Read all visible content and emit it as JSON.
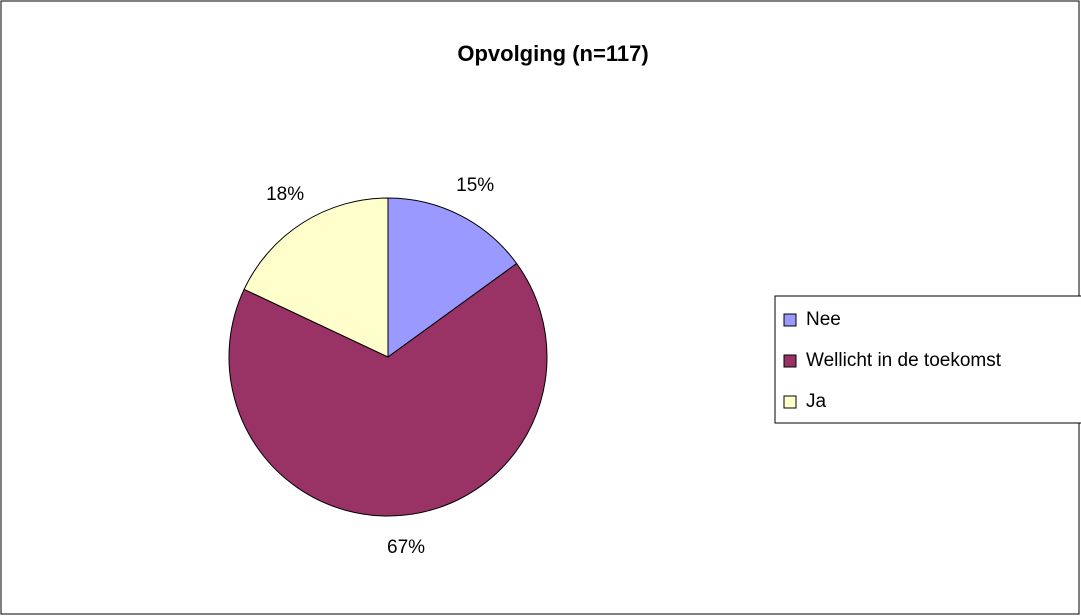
{
  "chart_data": {
    "type": "pie",
    "title": "Opvolging (n=117)",
    "categories": [
      "Nee",
      "Wellicht in de toekomst",
      "Ja"
    ],
    "values": [
      15,
      67,
      18
    ],
    "value_labels": [
      "15%",
      "67%",
      "18%"
    ],
    "colors": [
      "#9999ff",
      "#993366",
      "#ffffcc"
    ],
    "legend": "right"
  }
}
